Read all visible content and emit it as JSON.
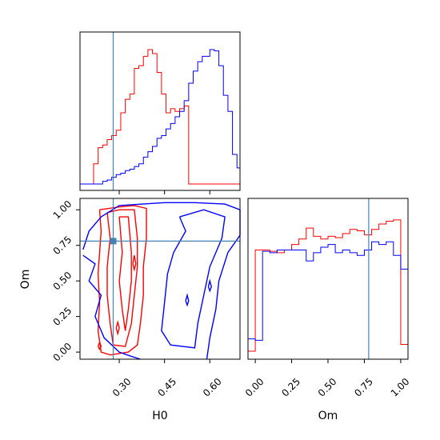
{
  "colors": {
    "series_a": "#ff0000",
    "series_b": "#0000ff",
    "truth": "#4682b4",
    "axis": "#000000"
  },
  "chart_data": [
    {
      "panel": "H0-marginal",
      "type": "histogram",
      "xlim": [
        0.17,
        0.7
      ],
      "x_bins": [
        0.17,
        0.185,
        0.2,
        0.215,
        0.23,
        0.245,
        0.26,
        0.275,
        0.29,
        0.305,
        0.32,
        0.335,
        0.35,
        0.365,
        0.38,
        0.395,
        0.41,
        0.425,
        0.44,
        0.455,
        0.47,
        0.485,
        0.5,
        0.515,
        0.53,
        0.545,
        0.56,
        0.575,
        0.6,
        0.615,
        0.63,
        0.645,
        0.66,
        0.675,
        0.69,
        0.7
      ],
      "series": [
        {
          "color_key": "series_a",
          "values": [
            0,
            0,
            0,
            0.15,
            0.27,
            0.29,
            0.33,
            0.36,
            0.4,
            0.53,
            0.63,
            0.67,
            0.86,
            0.88,
            0.95,
            1.0,
            0.97,
            0.83,
            0.67,
            0.53,
            0.56,
            0.54,
            0.56,
            0.58,
            0.0,
            0.0,
            0,
            0,
            0,
            0,
            0,
            0,
            0,
            0,
            0
          ]
        },
        {
          "color_key": "series_b",
          "values": [
            0,
            0,
            0,
            0,
            0,
            0.02,
            0.03,
            0.05,
            0.07,
            0.08,
            0.1,
            0.11,
            0.13,
            0.15,
            0.2,
            0.24,
            0.28,
            0.34,
            0.36,
            0.41,
            0.45,
            0.5,
            0.54,
            0.62,
            0.75,
            0.84,
            0.91,
            0.95,
            1.0,
            0.99,
            0.88,
            0.66,
            0.54,
            0.22,
            0.12
          ]
        }
      ],
      "truth_x": 0.28
    },
    {
      "panel": "H0-Om-joint",
      "type": "contour",
      "xlabel": "H0",
      "ylabel": "Om",
      "xlim": [
        0.17,
        0.7
      ],
      "ylim": [
        -0.05,
        1.08
      ],
      "xticks": [
        "0.30",
        "0.45",
        "0.60"
      ],
      "yticks": [
        "0.00",
        "0.25",
        "0.50",
        "0.75",
        "1.00"
      ],
      "truth": {
        "x": 0.28,
        "y": 0.78
      }
    },
    {
      "panel": "Om-marginal",
      "type": "histogram",
      "xlabel": "Om",
      "xlim": [
        -0.05,
        1.05
      ],
      "xticks": [
        "0.00",
        "0.25",
        "0.50",
        "0.75",
        "1.00"
      ],
      "x_bins": [
        -0.05,
        0.0,
        0.05,
        0.1,
        0.15,
        0.2,
        0.25,
        0.3,
        0.35,
        0.4,
        0.45,
        0.5,
        0.55,
        0.6,
        0.65,
        0.7,
        0.75,
        0.8,
        0.85,
        0.9,
        0.95,
        1.0,
        1.05
      ],
      "series": [
        {
          "color_key": "series_a",
          "values": [
            0,
            0.74,
            0.74,
            0.73,
            0.72,
            0.74,
            0.78,
            0.82,
            0.9,
            0.84,
            0.82,
            0.84,
            0.83,
            0.86,
            0.89,
            0.88,
            0.85,
            0.89,
            0.93,
            0.95,
            0.96,
            0.05,
            0.05
          ]
        },
        {
          "color_key": "series_b",
          "values": [
            0.09,
            0.08,
            0.73,
            0.72,
            0.74,
            0.74,
            0.74,
            0.74,
            0.66,
            0.72,
            0.76,
            0.78,
            0.72,
            0.74,
            0.72,
            0.7,
            0.74,
            0.8,
            0.78,
            0.8,
            0.7,
            0.6,
            0.13
          ]
        }
      ],
      "truth_x": 0.78
    }
  ]
}
